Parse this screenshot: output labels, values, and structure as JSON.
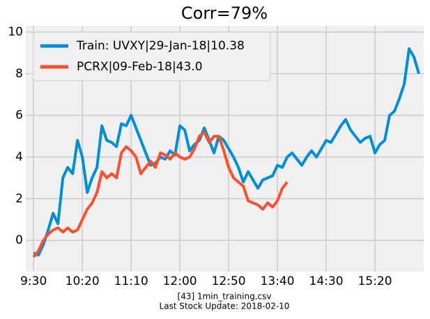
{
  "chart_data": {
    "type": "line",
    "title": "Corr=79%",
    "footer": [
      "[43] 1min_training.csv",
      "Last Stock Update: 2018-02-10"
    ],
    "x": [
      0,
      5,
      10,
      15,
      20,
      25,
      30,
      35,
      40,
      45,
      50,
      55,
      60,
      65,
      70,
      75,
      80,
      85,
      90,
      95,
      100,
      105,
      110,
      115,
      120,
      125,
      130,
      135,
      140,
      145,
      150,
      155,
      160,
      165,
      170,
      175,
      180,
      185,
      190,
      195,
      200,
      205,
      210,
      215,
      220,
      225,
      230,
      235,
      240,
      245,
      250,
      255,
      260,
      265,
      270,
      275,
      280,
      285,
      290,
      295,
      300,
      305,
      310,
      315,
      320,
      325,
      330,
      335,
      340,
      345,
      350,
      355,
      360,
      365,
      370,
      375,
      380,
      385,
      390,
      395
    ],
    "series": [
      {
        "name": "Train: UVXY|29-Jan-18|10.38",
        "color": "#008fd5",
        "values": [
          -0.6,
          -0.7,
          -0.2,
          0.5,
          1.3,
          0.8,
          3.0,
          3.5,
          3.2,
          4.8,
          4.0,
          2.3,
          3.0,
          3.5,
          5.5,
          4.8,
          4.7,
          4.5,
          5.6,
          5.5,
          6.0,
          5.4,
          4.8,
          4.2,
          3.6,
          3.7,
          4.0,
          3.9,
          4.3,
          4.1,
          5.5,
          5.3,
          4.3,
          4.6,
          4.8,
          5.4,
          4.8,
          4.2,
          5.0,
          4.8,
          4.4,
          4.0,
          3.5,
          2.8,
          3.3,
          2.9,
          2.5,
          2.9,
          3.0,
          3.1,
          3.6,
          3.5,
          4.0,
          4.2,
          3.9,
          3.6,
          4.0,
          4.3,
          4.0,
          4.4,
          4.8,
          4.7,
          5.1,
          5.5,
          5.8,
          5.3,
          5.0,
          4.7,
          4.9,
          5.0,
          4.2,
          4.6,
          4.8,
          6.0,
          6.2,
          6.8,
          7.5,
          9.2,
          8.8,
          8.0
        ]
      },
      {
        "name": "PCRX|09-Feb-18|43.0",
        "color": "#fc4f30",
        "values": [
          -0.8,
          -0.5,
          0.0,
          0.3,
          0.5,
          0.6,
          0.4,
          0.6,
          0.4,
          0.5,
          1.0,
          1.5,
          1.8,
          2.3,
          3.3,
          3.0,
          3.2,
          3.0,
          4.2,
          4.5,
          4.3,
          4.0,
          3.2,
          3.5,
          3.8,
          3.5,
          4.2,
          4.1,
          3.9,
          4.2,
          4.0,
          3.9,
          4.0,
          4.4,
          5.0,
          5.2,
          4.7,
          5.0,
          5.0,
          4.3,
          3.5,
          3.0,
          2.8,
          2.6,
          1.9,
          1.8,
          1.7,
          1.5,
          1.8,
          1.6,
          1.9,
          2.5,
          2.8,
          null,
          null,
          null,
          null,
          null,
          null,
          null,
          null,
          null,
          null,
          null,
          null,
          null,
          null,
          null,
          null,
          null,
          null,
          null,
          null,
          null,
          null,
          null,
          null,
          null,
          null,
          null
        ]
      }
    ],
    "xlim": [
      -8,
      400
    ],
    "xticks": [
      {
        "value": 0,
        "label": "9:30"
      },
      {
        "value": 50,
        "label": "10:20"
      },
      {
        "value": 100,
        "label": "11:10"
      },
      {
        "value": 150,
        "label": "12:00"
      },
      {
        "value": 200,
        "label": "12:50"
      },
      {
        "value": 250,
        "label": "13:40"
      },
      {
        "value": 300,
        "label": "14:30"
      },
      {
        "value": 350,
        "label": "15:20"
      }
    ],
    "ylim": [
      -1.5,
      10.3
    ],
    "yticks": [
      0,
      2,
      4,
      6,
      8,
      10
    ],
    "grid": true,
    "legend": "upper left"
  }
}
